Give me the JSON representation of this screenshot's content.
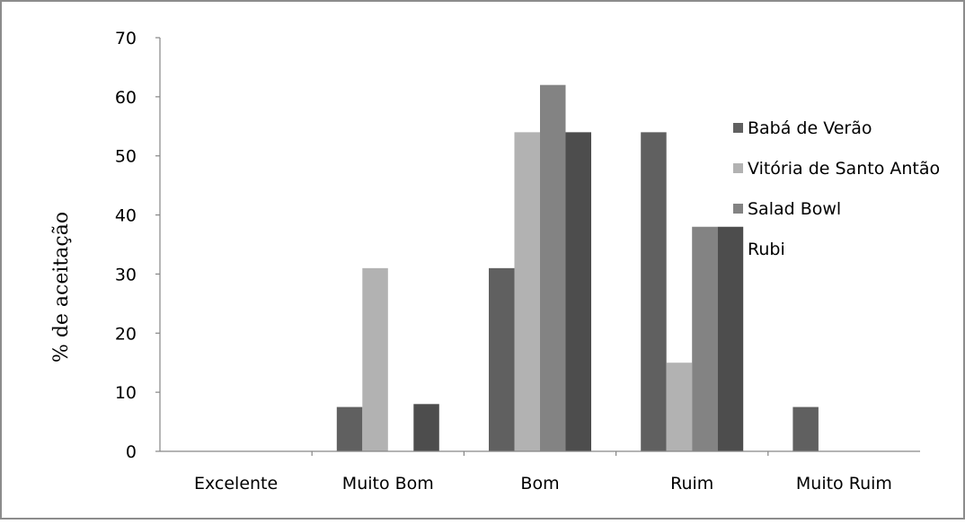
{
  "chart_data": {
    "type": "bar",
    "title": "",
    "xlabel": "",
    "ylabel": "% de aceitação",
    "ylim": [
      0,
      70
    ],
    "yticks": [
      0,
      10,
      20,
      30,
      40,
      50,
      60,
      70
    ],
    "grid": false,
    "legend_position": "right",
    "categories": [
      "Excelente",
      "Muito Bom",
      "Bom",
      "Ruim",
      "Muito Ruim"
    ],
    "series": [
      {
        "name": "Babá de Verão",
        "color": "#606060",
        "values": [
          0,
          7.5,
          31,
          54,
          7.5
        ]
      },
      {
        "name": "Vitória de Santo Antão",
        "color": "#b2b2b2",
        "values": [
          0,
          31,
          54,
          15,
          0
        ]
      },
      {
        "name": "Salad Bowl",
        "color": "#838383",
        "values": [
          0,
          0,
          62,
          38,
          0
        ]
      },
      {
        "name": "Rubi",
        "color": "#4d4d4d",
        "values": [
          0,
          8,
          54,
          38,
          0
        ]
      }
    ]
  }
}
